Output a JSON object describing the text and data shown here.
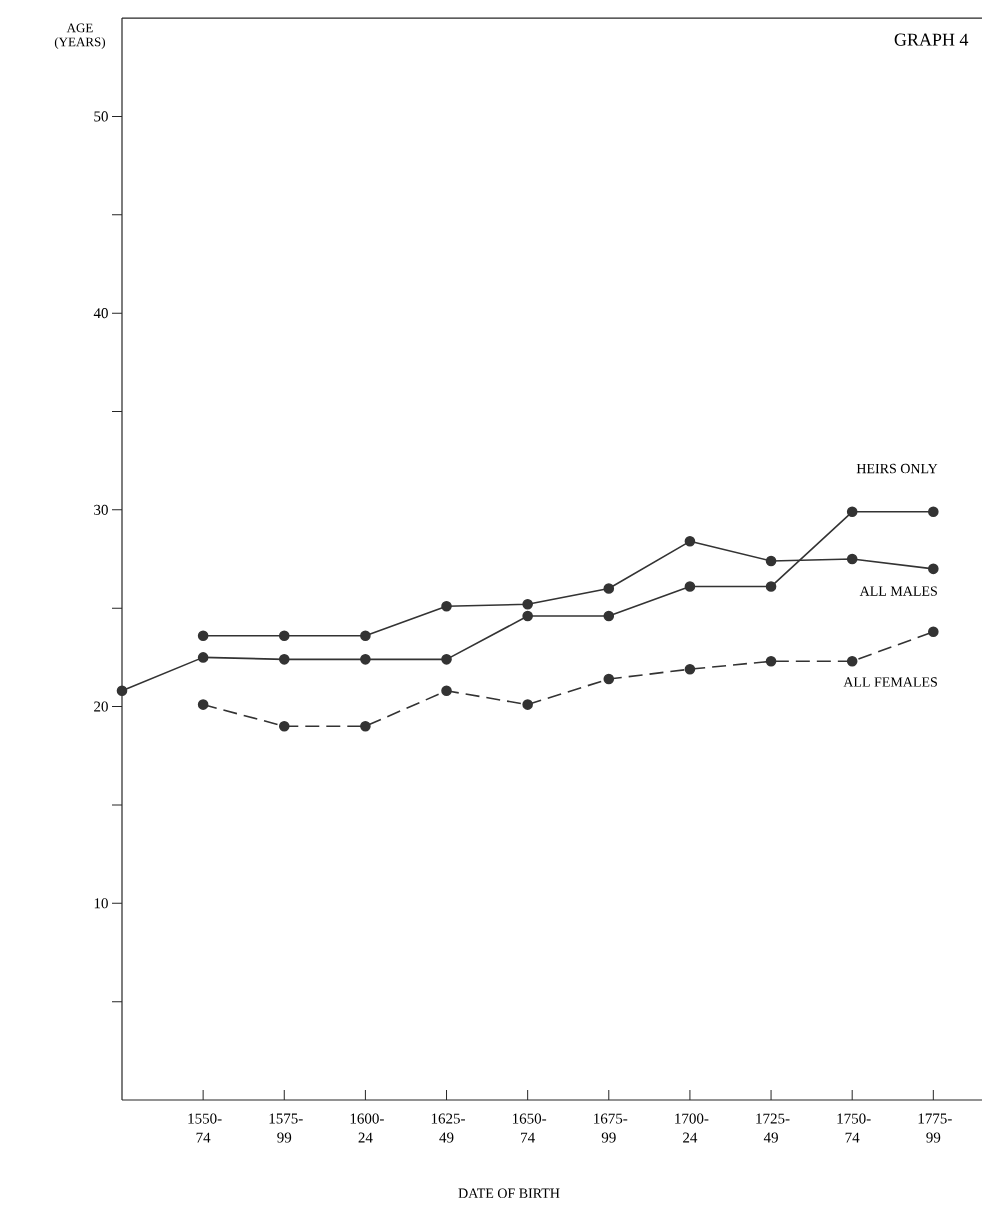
{
  "chart_data": {
    "type": "line",
    "title": "GRAPH 4",
    "xlabel": "DATE OF BIRTH",
    "ylabel": "AGE (YEARS)",
    "categories": [
      null,
      "1550-74",
      "1575-99",
      "1600-24",
      "1625-49",
      "1650-74",
      "1675-99",
      "1700-24",
      "1725-49",
      "1750-74",
      "1775-99"
    ],
    "series": [
      {
        "name": "HEIRS ONLY",
        "color": "#333333",
        "line_style": "solid",
        "values": [
          20.8,
          22.5,
          22.4,
          22.4,
          22.4,
          24.6,
          24.6,
          26.1,
          26.1,
          29.9,
          29.9
        ]
      },
      {
        "name": "ALL MALES",
        "color": "#333333",
        "line_style": "solid",
        "values": [
          null,
          23.6,
          23.6,
          23.6,
          25.1,
          25.2,
          26.0,
          28.4,
          27.4,
          27.5,
          27.0
        ]
      },
      {
        "name": "ALL FEMALES",
        "color": "#333333",
        "line_style": "dashed",
        "values": [
          null,
          20.1,
          19.0,
          19.0,
          20.8,
          20.1,
          21.4,
          21.9,
          22.3,
          22.3,
          23.8
        ]
      }
    ],
    "ylim": [
      0,
      55
    ],
    "yticks": [
      {
        "value": 5,
        "label": null
      },
      10,
      {
        "value": 15,
        "label": null
      },
      20,
      {
        "value": 25,
        "label": null
      },
      30,
      {
        "value": 35,
        "label": null
      },
      40,
      {
        "value": 45,
        "label": null
      },
      50
    ],
    "marker": "circle"
  }
}
